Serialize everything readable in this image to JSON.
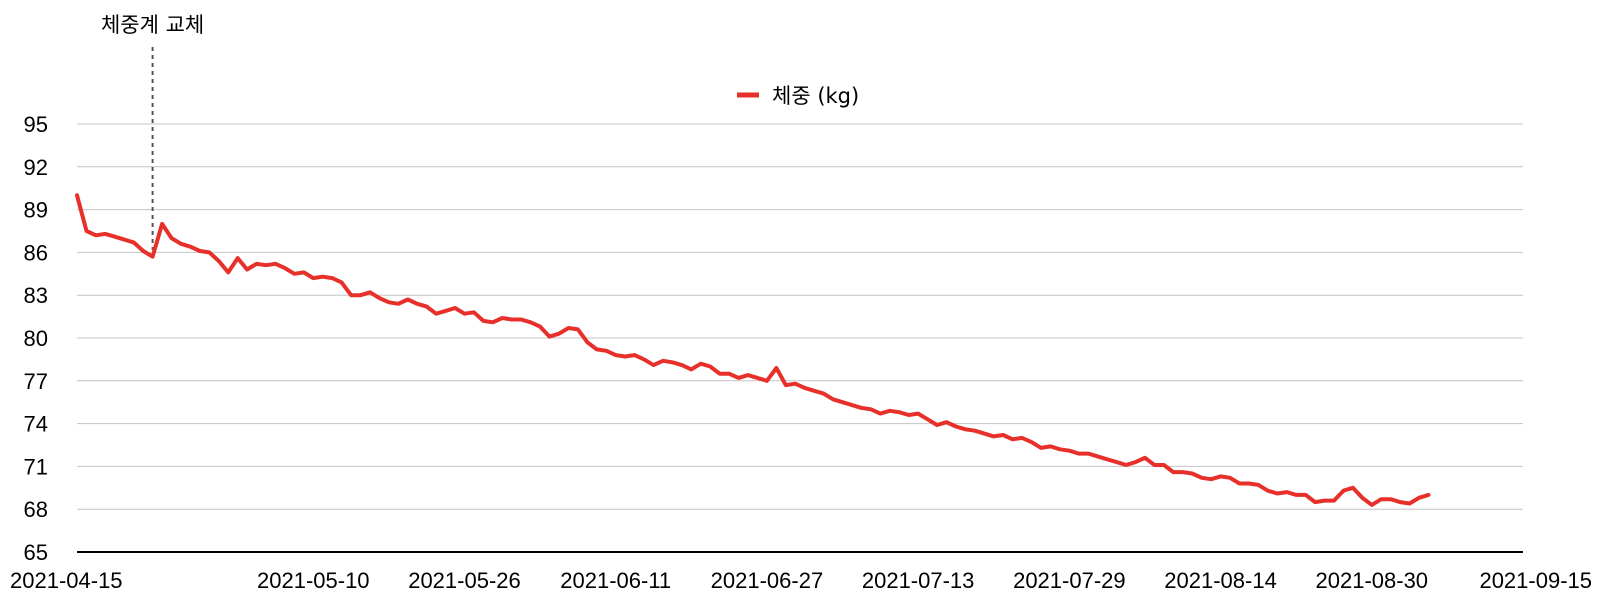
{
  "chart_data": {
    "type": "line",
    "title": "",
    "xlabel": "",
    "ylabel": "",
    "ylim": [
      65,
      95
    ],
    "yticks": [
      65,
      68,
      71,
      74,
      77,
      80,
      83,
      86,
      89,
      92,
      95
    ],
    "ytick_labels": [
      "65",
      "68",
      "71",
      "74",
      "77",
      "80",
      "83",
      "86",
      "89",
      "92",
      "95"
    ],
    "xlim": [
      "2021-04-15",
      "2021-09-15"
    ],
    "xticks": [
      "2021-04-15",
      "2021-05-10",
      "2021-05-26",
      "2021-06-11",
      "2021-06-27",
      "2021-07-13",
      "2021-07-29",
      "2021-08-14",
      "2021-08-30",
      "2021-09-15"
    ],
    "grid": true,
    "legend": {
      "position": "top-center",
      "entries": [
        "체중 (kg)"
      ]
    },
    "annotation": {
      "text": "체중계 교체",
      "date": "2021-04-23"
    },
    "series": [
      {
        "name": "체중 (kg)",
        "color": "#e8302a",
        "points": [
          [
            "2021-04-15",
            90.0
          ],
          [
            "2021-04-16",
            87.5
          ],
          [
            "2021-04-17",
            87.2
          ],
          [
            "2021-04-18",
            87.3
          ],
          [
            "2021-04-19",
            87.1
          ],
          [
            "2021-04-20",
            86.9
          ],
          [
            "2021-04-21",
            86.7
          ],
          [
            "2021-04-22",
            86.1
          ],
          [
            "2021-04-23",
            85.7
          ],
          [
            "2021-04-24",
            88.0
          ],
          [
            "2021-04-25",
            87.0
          ],
          [
            "2021-04-26",
            86.6
          ],
          [
            "2021-04-27",
            86.4
          ],
          [
            "2021-04-28",
            86.1
          ],
          [
            "2021-04-29",
            86.0
          ],
          [
            "2021-04-30",
            85.4
          ],
          [
            "2021-05-01",
            84.6
          ],
          [
            "2021-05-02",
            85.6
          ],
          [
            "2021-05-03",
            84.8
          ],
          [
            "2021-05-04",
            85.2
          ],
          [
            "2021-05-05",
            85.1
          ],
          [
            "2021-05-06",
            85.2
          ],
          [
            "2021-05-07",
            84.9
          ],
          [
            "2021-05-08",
            84.5
          ],
          [
            "2021-05-09",
            84.6
          ],
          [
            "2021-05-10",
            84.2
          ],
          [
            "2021-05-11",
            84.3
          ],
          [
            "2021-05-12",
            84.2
          ],
          [
            "2021-05-13",
            83.9
          ],
          [
            "2021-05-14",
            83.0
          ],
          [
            "2021-05-15",
            83.0
          ],
          [
            "2021-05-16",
            83.2
          ],
          [
            "2021-05-17",
            82.8
          ],
          [
            "2021-05-18",
            82.5
          ],
          [
            "2021-05-19",
            82.4
          ],
          [
            "2021-05-20",
            82.7
          ],
          [
            "2021-05-21",
            82.4
          ],
          [
            "2021-05-22",
            82.2
          ],
          [
            "2021-05-23",
            81.7
          ],
          [
            "2021-05-24",
            81.9
          ],
          [
            "2021-05-25",
            82.1
          ],
          [
            "2021-05-26",
            81.7
          ],
          [
            "2021-05-27",
            81.8
          ],
          [
            "2021-05-28",
            81.2
          ],
          [
            "2021-05-29",
            81.1
          ],
          [
            "2021-05-30",
            81.4
          ],
          [
            "2021-05-31",
            81.3
          ],
          [
            "2021-06-01",
            81.3
          ],
          [
            "2021-06-02",
            81.1
          ],
          [
            "2021-06-03",
            80.8
          ],
          [
            "2021-06-04",
            80.1
          ],
          [
            "2021-06-05",
            80.3
          ],
          [
            "2021-06-06",
            80.7
          ],
          [
            "2021-06-07",
            80.6
          ],
          [
            "2021-06-08",
            79.7
          ],
          [
            "2021-06-09",
            79.2
          ],
          [
            "2021-06-10",
            79.1
          ],
          [
            "2021-06-11",
            78.8
          ],
          [
            "2021-06-12",
            78.7
          ],
          [
            "2021-06-13",
            78.8
          ],
          [
            "2021-06-14",
            78.5
          ],
          [
            "2021-06-15",
            78.1
          ],
          [
            "2021-06-16",
            78.4
          ],
          [
            "2021-06-17",
            78.3
          ],
          [
            "2021-06-18",
            78.1
          ],
          [
            "2021-06-19",
            77.8
          ],
          [
            "2021-06-20",
            78.2
          ],
          [
            "2021-06-21",
            78.0
          ],
          [
            "2021-06-22",
            77.5
          ],
          [
            "2021-06-23",
            77.5
          ],
          [
            "2021-06-24",
            77.2
          ],
          [
            "2021-06-25",
            77.4
          ],
          [
            "2021-06-26",
            77.2
          ],
          [
            "2021-06-27",
            77.0
          ],
          [
            "2021-06-28",
            77.9
          ],
          [
            "2021-06-29",
            76.7
          ],
          [
            "2021-06-30",
            76.8
          ],
          [
            "2021-07-01",
            76.5
          ],
          [
            "2021-07-02",
            76.3
          ],
          [
            "2021-07-03",
            76.1
          ],
          [
            "2021-07-04",
            75.7
          ],
          [
            "2021-07-05",
            75.5
          ],
          [
            "2021-07-06",
            75.3
          ],
          [
            "2021-07-07",
            75.1
          ],
          [
            "2021-07-08",
            75.0
          ],
          [
            "2021-07-09",
            74.7
          ],
          [
            "2021-07-10",
            74.9
          ],
          [
            "2021-07-11",
            74.8
          ],
          [
            "2021-07-12",
            74.6
          ],
          [
            "2021-07-13",
            74.7
          ],
          [
            "2021-07-14",
            74.3
          ],
          [
            "2021-07-15",
            73.9
          ],
          [
            "2021-07-16",
            74.1
          ],
          [
            "2021-07-17",
            73.8
          ],
          [
            "2021-07-18",
            73.6
          ],
          [
            "2021-07-19",
            73.5
          ],
          [
            "2021-07-20",
            73.3
          ],
          [
            "2021-07-21",
            73.1
          ],
          [
            "2021-07-22",
            73.2
          ],
          [
            "2021-07-23",
            72.9
          ],
          [
            "2021-07-24",
            73.0
          ],
          [
            "2021-07-25",
            72.7
          ],
          [
            "2021-07-26",
            72.3
          ],
          [
            "2021-07-27",
            72.4
          ],
          [
            "2021-07-28",
            72.2
          ],
          [
            "2021-07-29",
            72.1
          ],
          [
            "2021-07-30",
            71.9
          ],
          [
            "2021-07-31",
            71.9
          ],
          [
            "2021-08-01",
            71.7
          ],
          [
            "2021-08-02",
            71.5
          ],
          [
            "2021-08-03",
            71.3
          ],
          [
            "2021-08-04",
            71.1
          ],
          [
            "2021-08-05",
            71.3
          ],
          [
            "2021-08-06",
            71.6
          ],
          [
            "2021-08-07",
            71.1
          ],
          [
            "2021-08-08",
            71.1
          ],
          [
            "2021-08-09",
            70.6
          ],
          [
            "2021-08-10",
            70.6
          ],
          [
            "2021-08-11",
            70.5
          ],
          [
            "2021-08-12",
            70.2
          ],
          [
            "2021-08-13",
            70.1
          ],
          [
            "2021-08-14",
            70.3
          ],
          [
            "2021-08-15",
            70.2
          ],
          [
            "2021-08-16",
            69.8
          ],
          [
            "2021-08-17",
            69.8
          ],
          [
            "2021-08-18",
            69.7
          ],
          [
            "2021-08-19",
            69.3
          ],
          [
            "2021-08-20",
            69.1
          ],
          [
            "2021-08-21",
            69.2
          ],
          [
            "2021-08-22",
            69.0
          ],
          [
            "2021-08-23",
            69.0
          ],
          [
            "2021-08-24",
            68.5
          ],
          [
            "2021-08-25",
            68.6
          ],
          [
            "2021-08-26",
            68.6
          ],
          [
            "2021-08-27",
            69.3
          ],
          [
            "2021-08-28",
            69.5
          ],
          [
            "2021-08-29",
            68.8
          ],
          [
            "2021-08-30",
            68.3
          ],
          [
            "2021-08-31",
            68.7
          ],
          [
            "2021-09-01",
            68.7
          ],
          [
            "2021-09-02",
            68.5
          ],
          [
            "2021-09-03",
            68.4
          ],
          [
            "2021-09-04",
            68.8
          ],
          [
            "2021-09-05",
            69.0
          ]
        ]
      }
    ]
  }
}
